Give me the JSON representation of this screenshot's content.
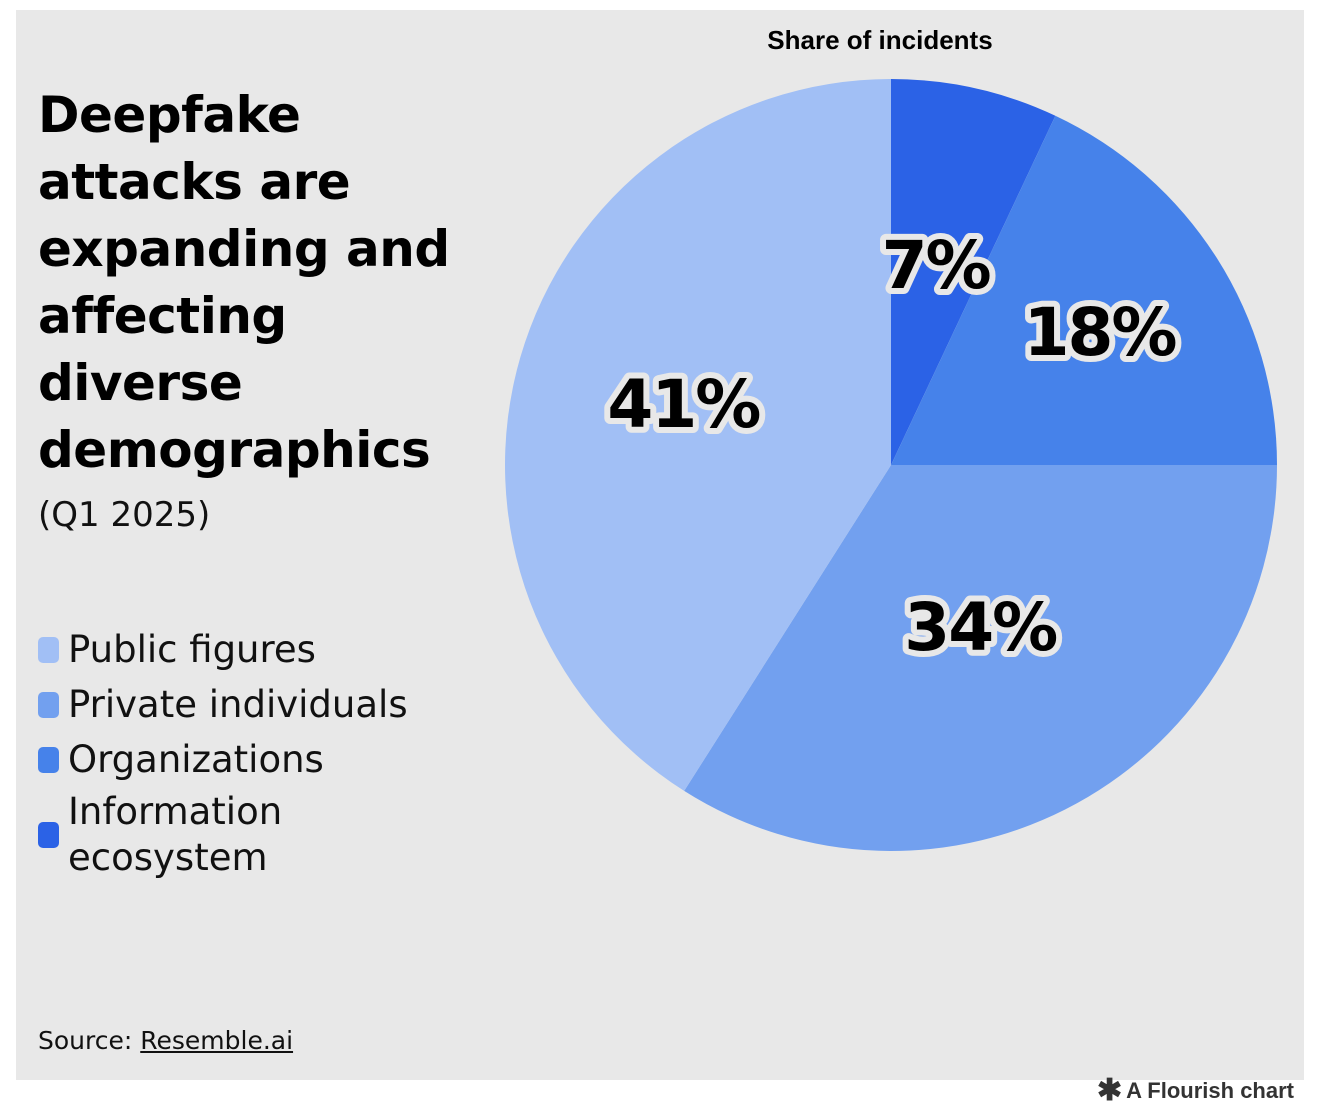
{
  "title": "Deepfake attacks are expanding and affecting diverse demographics",
  "subtitle": "(Q1 2025)",
  "chart_data": {
    "type": "pie",
    "title": "Share of incidents",
    "start_angle_deg": 0,
    "direction": "clockwise",
    "slices": [
      {
        "label": "Information ecosystem",
        "value": 7,
        "display": "7%",
        "color": "#2b62e6"
      },
      {
        "label": "Organizations",
        "value": 18,
        "display": "18%",
        "color": "#4682ea"
      },
      {
        "label": "Private individuals",
        "value": 34,
        "display": "34%",
        "color": "#72a0ef"
      },
      {
        "label": "Public figures",
        "value": 41,
        "display": "41%",
        "color": "#a1bff5"
      }
    ],
    "legend": [
      {
        "label": "Public figures",
        "color": "#a1bff5"
      },
      {
        "label": "Private individuals",
        "color": "#72a0ef"
      },
      {
        "label": "Organizations",
        "color": "#4682ea"
      },
      {
        "label": "Information ecosystem",
        "color": "#2b62e6"
      }
    ],
    "legend_position": "left"
  },
  "source": {
    "prefix": "Source:",
    "link_text": "Resemble.ai"
  },
  "credit": {
    "icon": "asterisk-icon",
    "text": "A Flourish chart"
  }
}
